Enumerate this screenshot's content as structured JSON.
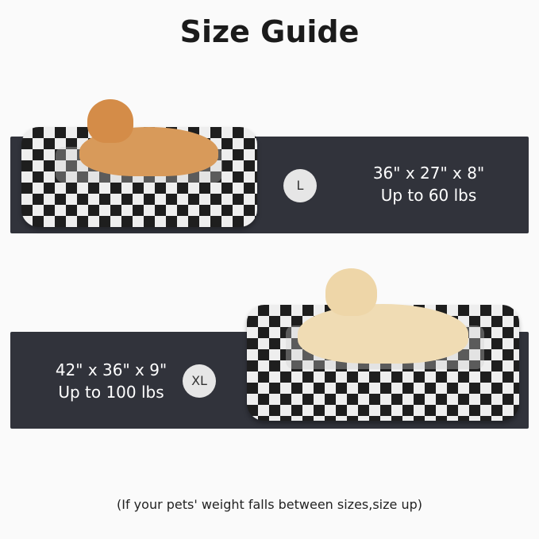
{
  "title": "Size Guide",
  "sizes": [
    {
      "badge": "L",
      "dimensions": "36\" x 27\" x 8\"",
      "weight": "Up to 60 lbs"
    },
    {
      "badge": "XL",
      "dimensions": "42\" x 36\" x 9\"",
      "weight": "Up to 100 lbs"
    }
  ],
  "note": "(If your pets' weight falls between sizes,size up)",
  "colors": {
    "band": "#31333b",
    "badge": "#e6e6e6"
  }
}
